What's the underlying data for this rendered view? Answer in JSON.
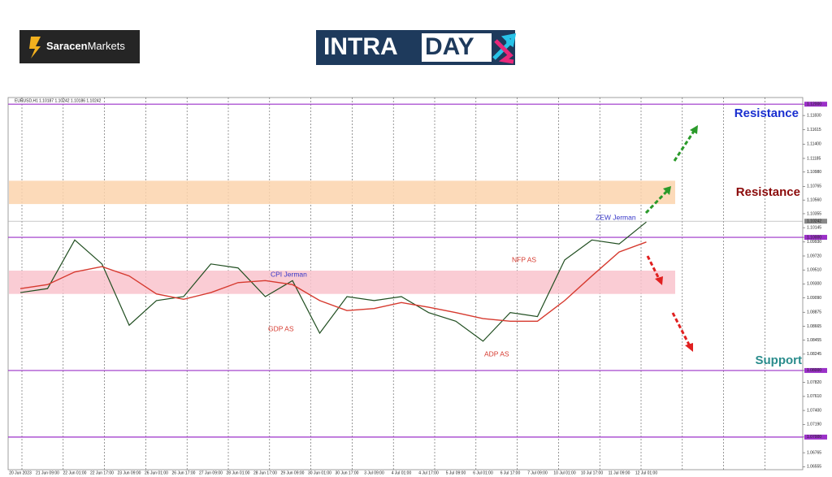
{
  "logos": {
    "broker": [
      "Saracen",
      "Markets"
    ],
    "show": [
      "INTRA",
      "DAY"
    ]
  },
  "chart_data": {
    "type": "line",
    "symbol": "EURUSD,H1",
    "quote": "1.10187 1.10242 1.10186 1.10242",
    "categories": [
      "20 Jun 2023",
      "21 Jun 09:00",
      "22 Jun 01:00",
      "22 Jun 17:00",
      "23 Jun 09:00",
      "26 Jun 01:00",
      "26 Jun 17:00",
      "27 Jun 09:00",
      "28 Jun 01:00",
      "28 Jun 17:00",
      "29 Jun 09:00",
      "30 Jun 01:00",
      "30 Jun 17:00",
      "3 Jul 09:00",
      "4 Jul 01:00",
      "4 Jul 17:00",
      "5 Jul 09:00",
      "6 Jul 01:00",
      "6 Jul 17:00",
      "7 Jul 09:00",
      "10 Jul 01:00",
      "10 Jul 17:00",
      "11 Jul 09:00",
      "12 Jul 01:00"
    ],
    "series": [
      {
        "color": "#1f4d1f",
        "values": [
          1.0917,
          1.0923,
          1.0996,
          1.096,
          1.0868,
          1.0905,
          1.0911,
          1.096,
          1.0954,
          1.0911,
          1.0935,
          1.0856,
          1.0911,
          1.0905,
          1.0911,
          1.0887,
          1.0874,
          1.0844,
          1.0887,
          1.0881,
          1.0966,
          1.0996,
          1.099,
          1.1023
        ]
      },
      {
        "color": "#d63a2f",
        "values": [
          1.0923,
          1.0929,
          1.0948,
          1.0956,
          1.0942,
          1.0915,
          1.0907,
          1.0917,
          1.0932,
          1.0935,
          1.0929,
          1.0905,
          1.089,
          1.0893,
          1.0902,
          1.0895,
          1.0887,
          1.0878,
          1.0874,
          1.0874,
          1.0905,
          1.0942,
          1.0978,
          1.0993
        ]
      }
    ],
    "ylim": [
      1.0651,
      1.121
    ],
    "yticks": [
      {
        "value": 1.12,
        "label": "1.12000"
      },
      {
        "value": 1.1183,
        "label": "1.11830"
      },
      1.11615,
      {
        "value": 1.114,
        "label": "1.11400"
      },
      1.11185,
      {
        "value": 1.1098,
        "label": "1.10980"
      },
      1.10765,
      {
        "value": 1.1056,
        "label": "1.10560"
      },
      1.10355,
      1.10145,
      {
        "value": 1.1,
        "label": "1.10000"
      },
      {
        "value": 1.0993,
        "label": "1.09930"
      },
      {
        "value": 1.0972,
        "label": "1.09720"
      },
      {
        "value": 1.0951,
        "label": "1.09510"
      },
      {
        "value": 1.093,
        "label": "1.09300"
      },
      {
        "value": 1.0909,
        "label": "1.09090"
      },
      1.08875,
      1.08665,
      1.08455,
      1.08245,
      {
        "value": 1.08,
        "label": "1.08000"
      },
      {
        "value": 1.0782,
        "label": "1.07820"
      },
      {
        "value": 1.0761,
        "label": "1.07610"
      },
      {
        "value": 1.074,
        "label": "1.07400"
      },
      {
        "value": 1.0719,
        "label": "1.07190"
      },
      {
        "value": 1.07,
        "label": "1.07000"
      },
      1.06765,
      1.06555
    ],
    "current_price": 1.10242,
    "levels": [
      1.12,
      1.1,
      1.08,
      1.07
    ],
    "level_color": "#9b30c8",
    "zones": [
      {
        "from": 1.105,
        "to": 1.1085,
        "color": "#fcd3ad"
      },
      {
        "from": 1.0915,
        "to": 1.095,
        "color": "#f9c3cd"
      }
    ],
    "zone_labels": [
      {
        "text": "Resistance",
        "color": "#1a2fd0"
      },
      {
        "text": "Resistance",
        "color": "#8b0a0a"
      },
      {
        "text": "Support",
        "color": "#2a8c8c"
      }
    ],
    "events": [
      {
        "text": "ZEW Jerman",
        "color": "#3535c8"
      },
      {
        "text": "CPI Jerman",
        "color": "#3535c8"
      },
      {
        "text": "NFP AS",
        "color": "#d63a2f"
      },
      {
        "text": "GDP AS",
        "color": "#d63a2f"
      },
      {
        "text": "ADP AS",
        "color": "#d63a2f"
      }
    ]
  }
}
